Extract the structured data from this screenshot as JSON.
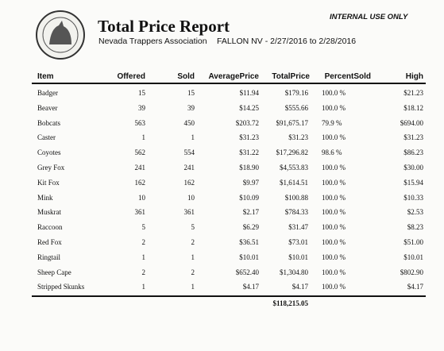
{
  "header": {
    "title": "Total Price Report",
    "organization": "Nevada Trappers Association",
    "subtitle": "FALLON NV - 2/27/2016 to 2/28/2016",
    "notice": "INTERNAL USE ONLY"
  },
  "table": {
    "columns": [
      "Item",
      "Offered",
      "Sold",
      "AveragePrice",
      "TotalPrice",
      "PercentSold",
      "High"
    ],
    "rows": [
      [
        "Badger",
        "15",
        "15",
        "$11.94",
        "$179.16",
        "100.0 %",
        "$21.23"
      ],
      [
        "Beaver",
        "39",
        "39",
        "$14.25",
        "$555.66",
        "100.0 %",
        "$18.12"
      ],
      [
        "Bobcats",
        "563",
        "450",
        "$203.72",
        "$91,675.17",
        "79.9 %",
        "$694.00"
      ],
      [
        "Caster",
        "1",
        "1",
        "$31.23",
        "$31.23",
        "100.0 %",
        "$31.23"
      ],
      [
        "Coyotes",
        "562",
        "554",
        "$31.22",
        "$17,296.82",
        "98.6 %",
        "$86.23"
      ],
      [
        "Grey Fox",
        "241",
        "241",
        "$18.90",
        "$4,553.83",
        "100.0 %",
        "$30.00"
      ],
      [
        "Kit Fox",
        "162",
        "162",
        "$9.97",
        "$1,614.51",
        "100.0 %",
        "$15.94"
      ],
      [
        "Mink",
        "10",
        "10",
        "$10.09",
        "$100.88",
        "100.0 %",
        "$10.33"
      ],
      [
        "Muskrat",
        "361",
        "361",
        "$2.17",
        "$784.33",
        "100.0 %",
        "$2.53"
      ],
      [
        "Raccoon",
        "5",
        "5",
        "$6.29",
        "$31.47",
        "100.0 %",
        "$8.23"
      ],
      [
        "Red Fox",
        "2",
        "2",
        "$36.51",
        "$73.01",
        "100.0 %",
        "$51.00"
      ],
      [
        "Ringtail",
        "1",
        "1",
        "$10.01",
        "$10.01",
        "100.0 %",
        "$10.01"
      ],
      [
        "Sheep Cape",
        "2",
        "2",
        "$652.40",
        "$1,304.80",
        "100.0 %",
        "$802.90"
      ],
      [
        "Stripped Skunks",
        "1",
        "1",
        "$4.17",
        "$4.17",
        "100.0 %",
        "$4.17"
      ]
    ],
    "total": "$118,215.05"
  }
}
